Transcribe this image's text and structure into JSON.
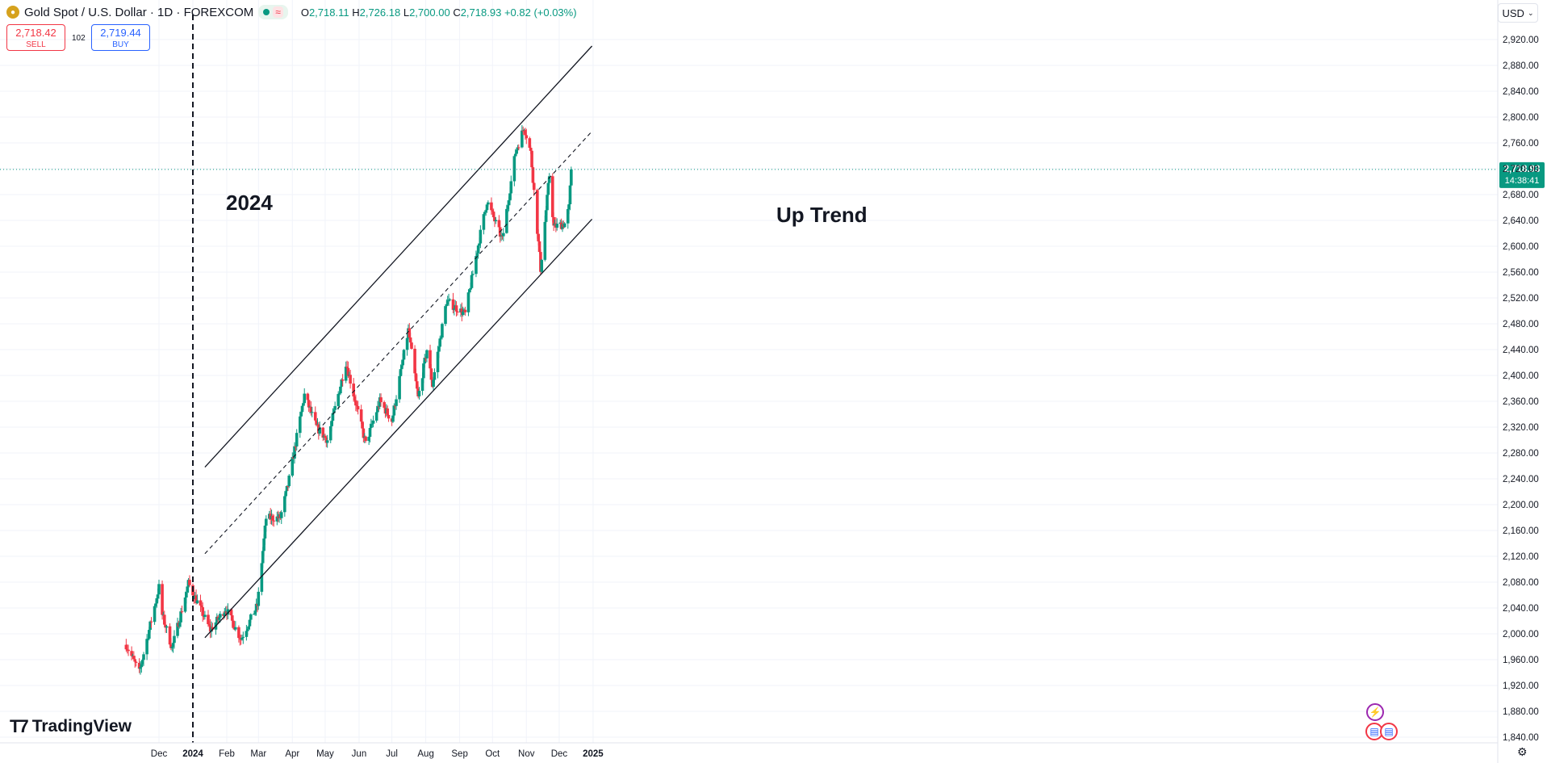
{
  "header": {
    "symbol_title": "Gold Spot / U.S. Dollar · 1D · FOREXCOM",
    "ohlc": {
      "o_label": "O",
      "o": "2,718.11",
      "h_label": "H",
      "h": "2,726.18",
      "l_label": "L",
      "l": "2,700.00",
      "c_label": "C",
      "c": "2,718.93",
      "change": "+0.82 (+0.03%)"
    },
    "sell_price": "2,718.42",
    "sell_label": "SELL",
    "spread": "102",
    "buy_price": "2,719.44",
    "buy_label": "BUY",
    "currency": "USD",
    "brand": "TradingView"
  },
  "colors": {
    "up": "#089981",
    "down": "#f23645",
    "grid": "#f0f3fa",
    "text": "#131722",
    "price_line": "#089981"
  },
  "chart_data": {
    "type": "candlestick",
    "x_tick_labels": [
      "Dec",
      "2024",
      "Feb",
      "Mar",
      "Apr",
      "May",
      "Jun",
      "Jul",
      "Aug",
      "Sep",
      "Oct",
      "Nov",
      "Dec",
      "2025"
    ],
    "y_tick_labels": [
      "2,920.00",
      "2,880.00",
      "2,840.00",
      "2,800.00",
      "2,760.00",
      "2,720.00",
      "2,680.00",
      "2,640.00",
      "2,600.00",
      "2,560.00",
      "2,520.00",
      "2,480.00",
      "2,440.00",
      "2,400.00",
      "2,360.00",
      "2,320.00",
      "2,280.00",
      "2,240.00",
      "2,200.00",
      "2,160.00",
      "2,120.00",
      "2,080.00",
      "2,040.00",
      "2,000.00",
      "1,960.00",
      "1,920.00",
      "1,880.00",
      "1,840.00"
    ],
    "ylim": [
      1830,
      2935
    ],
    "last_price": "2,718.93",
    "last_price_value": 2718.93,
    "countdown": "14:38:41",
    "annotations": {
      "year_label": "2024",
      "trend_label": "Up Trend"
    },
    "channel": {
      "start": "2024-01-12",
      "end": "2024-12-31",
      "upper": [
        2258,
        2910
      ],
      "middle": [
        2124,
        2778
      ],
      "lower": [
        1994,
        2642
      ]
    },
    "year_divider": "2024-01-01",
    "key_points": [
      {
        "date": "2023-11-01",
        "close": 1983
      },
      {
        "date": "2023-11-13",
        "close": 1940
      },
      {
        "date": "2023-12-01",
        "close": 2072
      },
      {
        "date": "2023-12-04",
        "close": 2029
      },
      {
        "date": "2023-12-13",
        "close": 1978
      },
      {
        "date": "2023-12-28",
        "close": 2078
      },
      {
        "date": "2024-01-17",
        "close": 2006
      },
      {
        "date": "2024-01-31",
        "close": 2039
      },
      {
        "date": "2024-02-14",
        "close": 1992
      },
      {
        "date": "2024-02-29",
        "close": 2044
      },
      {
        "date": "2024-03-08",
        "close": 2179
      },
      {
        "date": "2024-03-21",
        "close": 2180
      },
      {
        "date": "2024-03-28",
        "close": 2230
      },
      {
        "date": "2024-04-12",
        "close": 2370
      },
      {
        "date": "2024-04-23",
        "close": 2320
      },
      {
        "date": "2024-05-03",
        "close": 2300
      },
      {
        "date": "2024-05-20",
        "close": 2420
      },
      {
        "date": "2024-06-07",
        "close": 2294
      },
      {
        "date": "2024-06-20",
        "close": 2360
      },
      {
        "date": "2024-07-01",
        "close": 2330
      },
      {
        "date": "2024-07-16",
        "close": 2470
      },
      {
        "date": "2024-07-25",
        "close": 2365
      },
      {
        "date": "2024-08-02",
        "close": 2440
      },
      {
        "date": "2024-08-07",
        "close": 2385
      },
      {
        "date": "2024-08-20",
        "close": 2515
      },
      {
        "date": "2024-09-06",
        "close": 2495
      },
      {
        "date": "2024-09-20",
        "close": 2620
      },
      {
        "date": "2024-09-26",
        "close": 2670
      },
      {
        "date": "2024-10-10",
        "close": 2610
      },
      {
        "date": "2024-10-22",
        "close": 2745
      },
      {
        "date": "2024-10-30",
        "close": 2785
      },
      {
        "date": "2024-11-05",
        "close": 2745
      },
      {
        "date": "2024-11-14",
        "close": 2565
      },
      {
        "date": "2024-11-22",
        "close": 2710
      },
      {
        "date": "2024-11-26",
        "close": 2630
      },
      {
        "date": "2024-12-06",
        "close": 2635
      },
      {
        "date": "2024-12-10",
        "close": 2660
      },
      {
        "date": "2024-12-12",
        "close": 2718.93
      }
    ]
  }
}
